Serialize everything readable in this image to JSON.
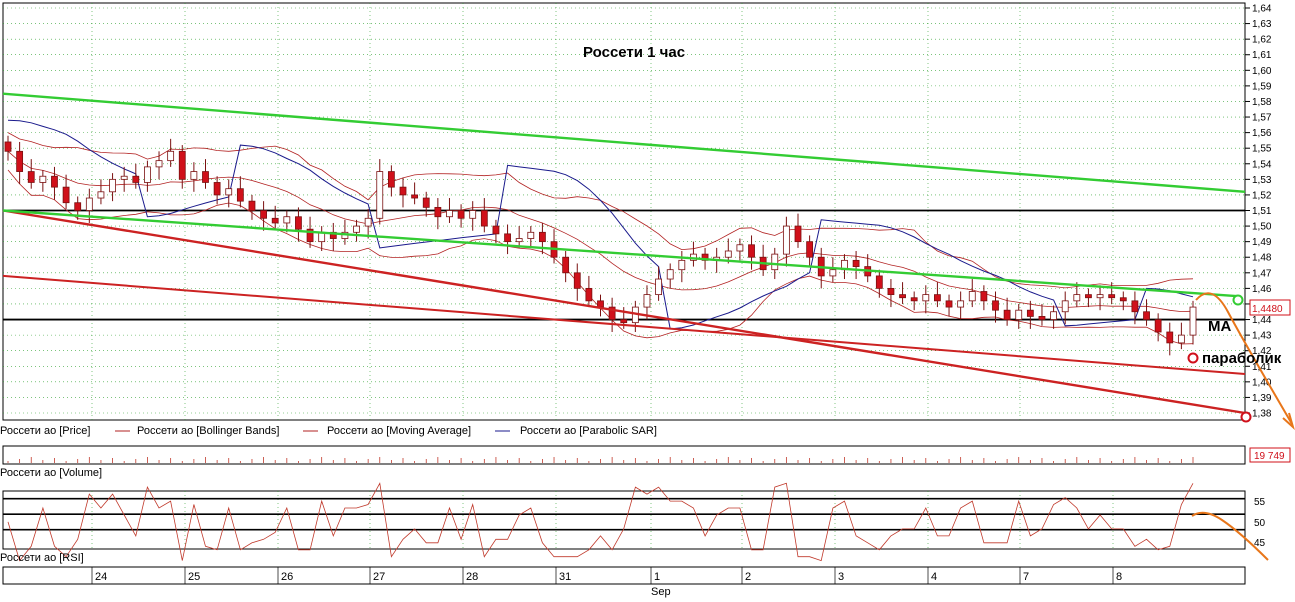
{
  "chart_data": {
    "type": "candlestick",
    "title": "Россети   1 час",
    "colors": {
      "candle_down": "#d0101a",
      "candle_up": "#ffffff",
      "bollinger": "#b22222",
      "moving_average": "#b22222",
      "parabolic_sar": "#1a1a8c",
      "trend_green": "#33cc33",
      "trend_red": "#cc2222",
      "horizontal_levels": "#000000",
      "forecast": "#e8761a",
      "grid": "#2ea02e",
      "rsi_line": "#c0392b"
    },
    "price_axis": {
      "ylim": [
        1.375,
        1.645
      ],
      "ticks": [
        "1,64",
        "1,63",
        "1,62",
        "1,61",
        "1,60",
        "1,59",
        "1,58",
        "1,57",
        "1,56",
        "1,55",
        "1,54",
        "1,53",
        "1,52",
        "1,51",
        "1,50",
        "1,49",
        "1,48",
        "1,47",
        "1,46",
        "1,45",
        "1,44",
        "1,43",
        "1,42",
        "1,41",
        "1,40",
        "1,39",
        "1,38"
      ],
      "last_price_label": "1,4480"
    },
    "x_labels": [
      "24",
      "25",
      "26",
      "27",
      "28",
      "31",
      "1",
      "2",
      "3",
      "4",
      "7",
      "8"
    ],
    "month_label": "Sep",
    "legend": [
      {
        "name": "Россети ао [Price]",
        "icon": "none"
      },
      {
        "name": "Россети ао [Bollinger Bands]",
        "icon": "line-red"
      },
      {
        "name": "Россети ао [Moving Average]",
        "icon": "line-red"
      },
      {
        "name": "Россети ао [Parabolic SAR]",
        "icon": "line-blue"
      }
    ],
    "price_close": [
      1.548,
      1.535,
      1.528,
      1.532,
      1.525,
      1.515,
      1.51,
      1.518,
      1.522,
      1.53,
      1.532,
      1.528,
      1.538,
      1.542,
      1.548,
      1.53,
      1.535,
      1.528,
      1.52,
      1.524,
      1.516,
      1.51,
      1.505,
      1.502,
      1.506,
      1.498,
      1.49,
      1.496,
      1.492,
      1.496,
      1.5,
      1.505,
      1.535,
      1.525,
      1.52,
      1.518,
      1.512,
      1.506,
      1.51,
      1.505,
      1.51,
      1.5,
      1.495,
      1.49,
      1.492,
      1.496,
      1.49,
      1.48,
      1.47,
      1.46,
      1.452,
      1.448,
      1.44,
      1.438,
      1.448,
      1.456,
      1.466,
      1.472,
      1.478,
      1.482,
      1.478,
      1.48,
      1.484,
      1.488,
      1.48,
      1.472,
      1.482,
      1.5,
      1.49,
      1.48,
      1.468,
      1.472,
      1.478,
      1.474,
      1.468,
      1.46,
      1.456,
      1.454,
      1.452,
      1.456,
      1.452,
      1.448,
      1.452,
      1.458,
      1.452,
      1.446,
      1.44,
      1.446,
      1.442,
      1.44,
      1.445,
      1.452,
      1.456,
      1.454,
      1.456,
      1.454,
      1.452,
      1.445,
      1.44,
      1.432,
      1.425,
      1.43,
      1.448
    ],
    "volume_label": "Россети ао [Volume]",
    "volume_value": "19 749",
    "rsi": {
      "label": "Россети ао [RSI]",
      "ylim": [
        43,
        58
      ],
      "ticks": [
        "55",
        "50",
        "45"
      ],
      "levels": [
        56,
        52,
        48
      ]
    },
    "annotations": {
      "ma_label": "MA",
      "parabolic_label": "параболик"
    }
  }
}
